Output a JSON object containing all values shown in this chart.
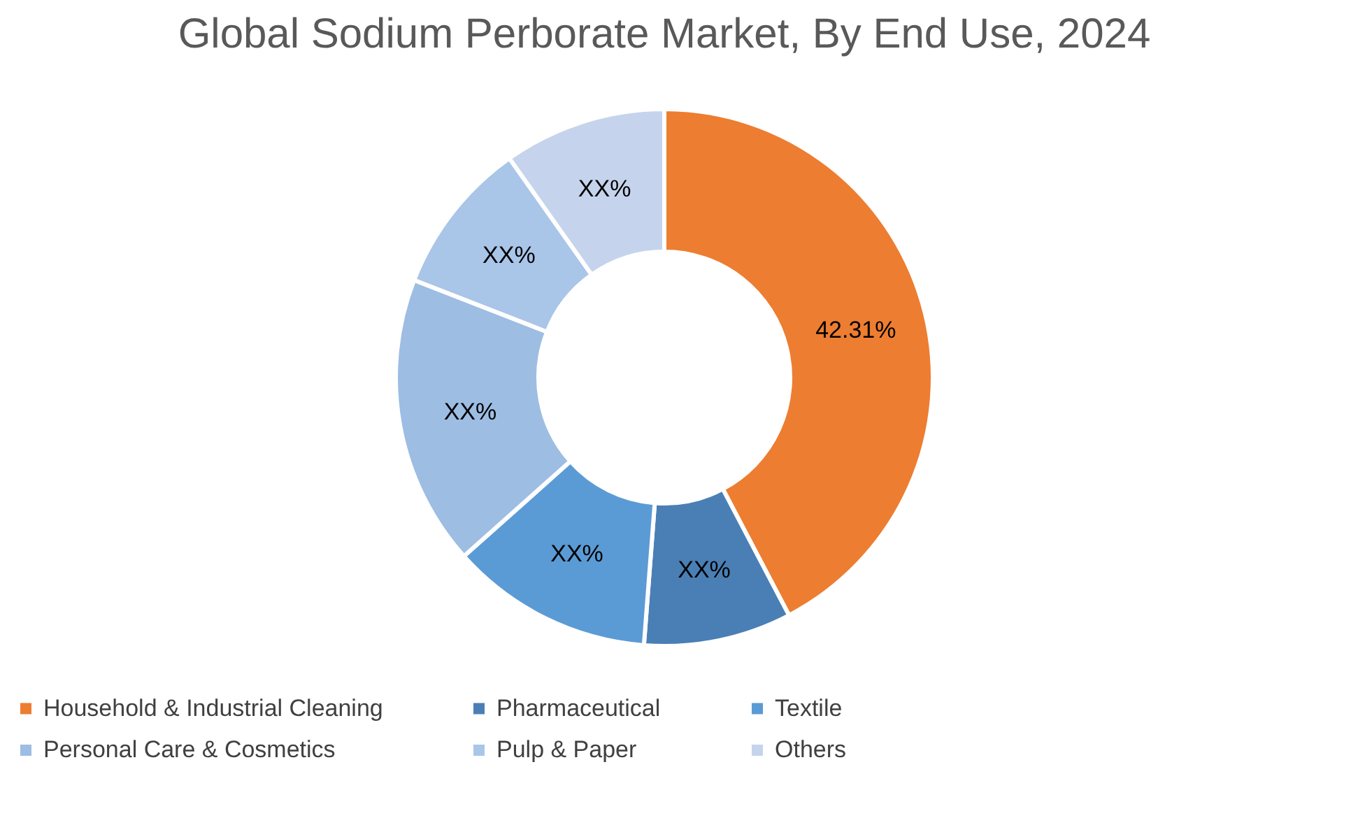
{
  "chart_data": {
    "type": "donut",
    "title": "Global Sodium Perborate Market, By End Use, 2024",
    "categories": [
      "Household & Industrial Cleaning",
      "Pharmaceutical",
      "Textile",
      "Personal Care & Cosmetics",
      "Pulp & Paper",
      "Others"
    ],
    "values": [
      42.31,
      8.9,
      12.2,
      17.5,
      9.3,
      9.79
    ],
    "value_labels": [
      "42.31%",
      "XX%",
      "XX%",
      "XX%",
      "XX%",
      "XX%"
    ],
    "colors": [
      "#ed7d31",
      "#4a7fb5",
      "#5b9bd5",
      "#9dbde3",
      "#a9c5e8",
      "#c5d4ec"
    ],
    "legend": "bottom"
  }
}
